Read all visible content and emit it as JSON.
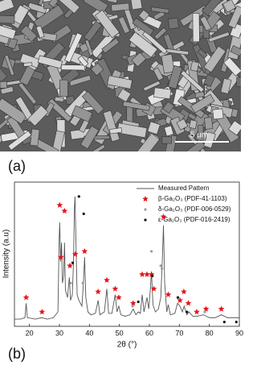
{
  "image_panel": {
    "label": "(a)",
    "scale_bar": "5 μm"
  },
  "chart_data": {
    "type": "line",
    "panel_label": "(b)",
    "x_label": "2θ (°)",
    "y_label": "Intensity (a.u)",
    "xlim": [
      15,
      90
    ],
    "xticks": [
      20,
      30,
      40,
      50,
      60,
      70,
      80,
      90
    ],
    "ylim": [
      0,
      100
    ],
    "legend": "top-right",
    "series": [
      {
        "name": "Measured Pattern",
        "color": "#555555",
        "marker": "line",
        "x": [
          15,
          17,
          18.5,
          18.9,
          19.3,
          22,
          24,
          26,
          28,
          29.5,
          29.9,
          30.1,
          30.4,
          30.7,
          31.0,
          31.4,
          31.7,
          32.0,
          32.7,
          33.3,
          33.7,
          34.3,
          34.7,
          35.0,
          35.2,
          35.5,
          35.9,
          36.5,
          37.5,
          38.0,
          38.4,
          38.8,
          39.5,
          40.5,
          42.0,
          42.9,
          43.5,
          45.0,
          45.8,
          46.4,
          47.5,
          48.6,
          49.2,
          49.8,
          50.5,
          52.0,
          53.5,
          54.6,
          55.5,
          56.3,
          57.0,
          57.6,
          58.2,
          59.2,
          59.8,
          60.3,
          60.7,
          61.2,
          62.0,
          63.0,
          63.8,
          64.3,
          64.7,
          65.1,
          65.8,
          66.3,
          67.0,
          68.5,
          69.4,
          70.2,
          71.0,
          71.6,
          72.5,
          73.2,
          74.5,
          76,
          78,
          80,
          82,
          84,
          86,
          88,
          90
        ],
        "values": [
          5,
          5,
          6,
          16,
          6,
          5,
          6,
          5,
          6,
          10,
          60,
          72,
          45,
          58,
          30,
          35,
          58,
          25,
          20,
          34,
          18,
          22,
          45,
          82,
          90,
          60,
          22,
          18,
          14,
          30,
          48,
          20,
          10,
          8,
          9,
          18,
          8,
          10,
          26,
          9,
          9,
          22,
          10,
          14,
          8,
          7,
          8,
          12,
          8,
          10,
          9,
          22,
          10,
          20,
          12,
          25,
          38,
          15,
          10,
          12,
          20,
          45,
          70,
          30,
          10,
          15,
          8,
          9,
          16,
          14,
          10,
          14,
          8,
          10,
          7,
          7,
          8,
          6,
          6,
          8,
          6,
          6,
          6
        ]
      },
      {
        "name": "β-Ga₂O₃ (PDF-41-1103)",
        "color": "#e8141b",
        "marker": "star",
        "x": [
          18.9,
          24.2,
          30.1,
          31.7,
          30.5,
          33.5,
          35.3,
          38.4,
          42.9,
          45.8,
          48.6,
          49.8,
          54.6,
          57.6,
          59.2,
          60.7,
          61.5,
          64.7,
          66.3,
          70.2,
          71.5,
          73.0,
          75.8,
          78.9,
          84.0
        ],
        "values": [
          20,
          10,
          84,
          80,
          48,
          42,
          50,
          52,
          24,
          32,
          26,
          20,
          16,
          36,
          36,
          36,
          26,
          76,
          22,
          18,
          24,
          16,
          10,
          12,
          12
        ]
      },
      {
        "name": "δ-Ga₂O₃ (PDF-006-0529)",
        "color": "#9a9a9a",
        "marker": "dot",
        "x": [
          33.8,
          37.8,
          54.4,
          60.7,
          63.8,
          64.2,
          78.5
        ],
        "values": [
          30,
          30,
          14,
          52,
          42,
          40,
          10
        ]
      },
      {
        "name": "ε-Ga₂O₃ (PDF-016-2419)",
        "color": "#111111",
        "marker": "dot",
        "x": [
          34.4,
          36.5,
          38.1,
          56.3,
          61.0,
          69.5,
          72.5,
          85,
          89
        ],
        "values": [
          44,
          90,
          78,
          17,
          35,
          20,
          10,
          3,
          3
        ]
      }
    ]
  }
}
